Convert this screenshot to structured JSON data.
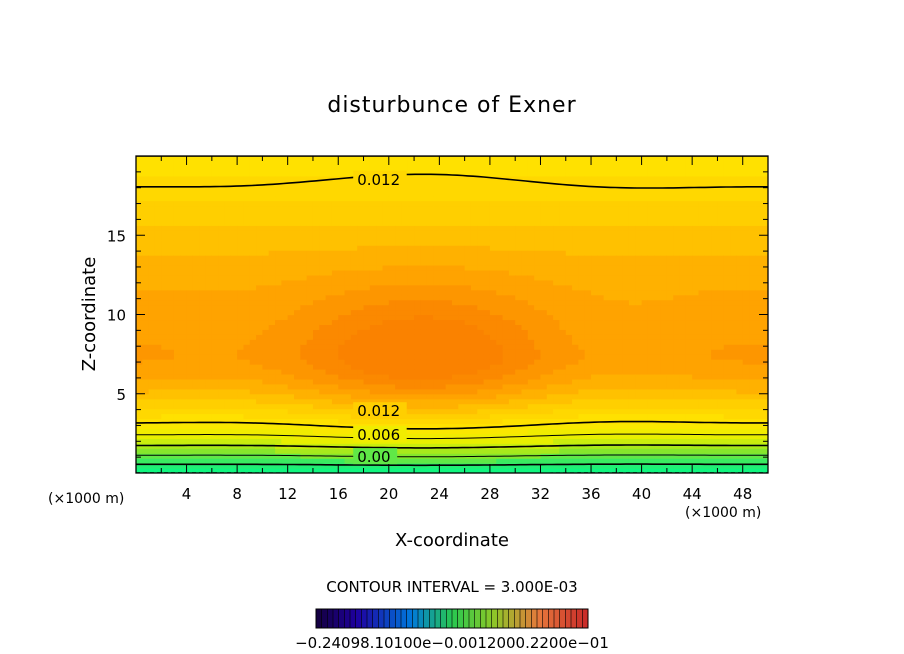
{
  "chart_data": {
    "type": "heatmap",
    "title": "disturbunce of Exner",
    "xlabel": "X-coordinate",
    "ylabel": "Z-coordinate",
    "x_unit_left": "(×1000 m)",
    "x_unit_right": "(×1000 m)",
    "xlim": [
      0,
      50
    ],
    "ylim": [
      0,
      20
    ],
    "x_ticks": [
      4,
      8,
      12,
      16,
      20,
      24,
      28,
      32,
      36,
      40,
      44,
      48
    ],
    "y_ticks": [
      5,
      10,
      15
    ],
    "contour_interval_text": "CONTOUR INTERVAL = 3.000E-03",
    "colorbar_labels_text": "−0.24098.10100e−0.0012000.2200e−01",
    "contour_labels": [
      {
        "text": "0.012",
        "x": 17.5,
        "z": 18.5
      },
      {
        "text": "0.012",
        "x": 17.5,
        "z": 3.9
      },
      {
        "text": "0.006",
        "x": 17.5,
        "z": 2.4
      },
      {
        "text": "0.00",
        "x": 17.5,
        "z": 1.0
      }
    ],
    "field_description_values": {
      "max_region_center_z": 7.5,
      "surface_value": -0.003,
      "top_value": 0.012
    }
  }
}
